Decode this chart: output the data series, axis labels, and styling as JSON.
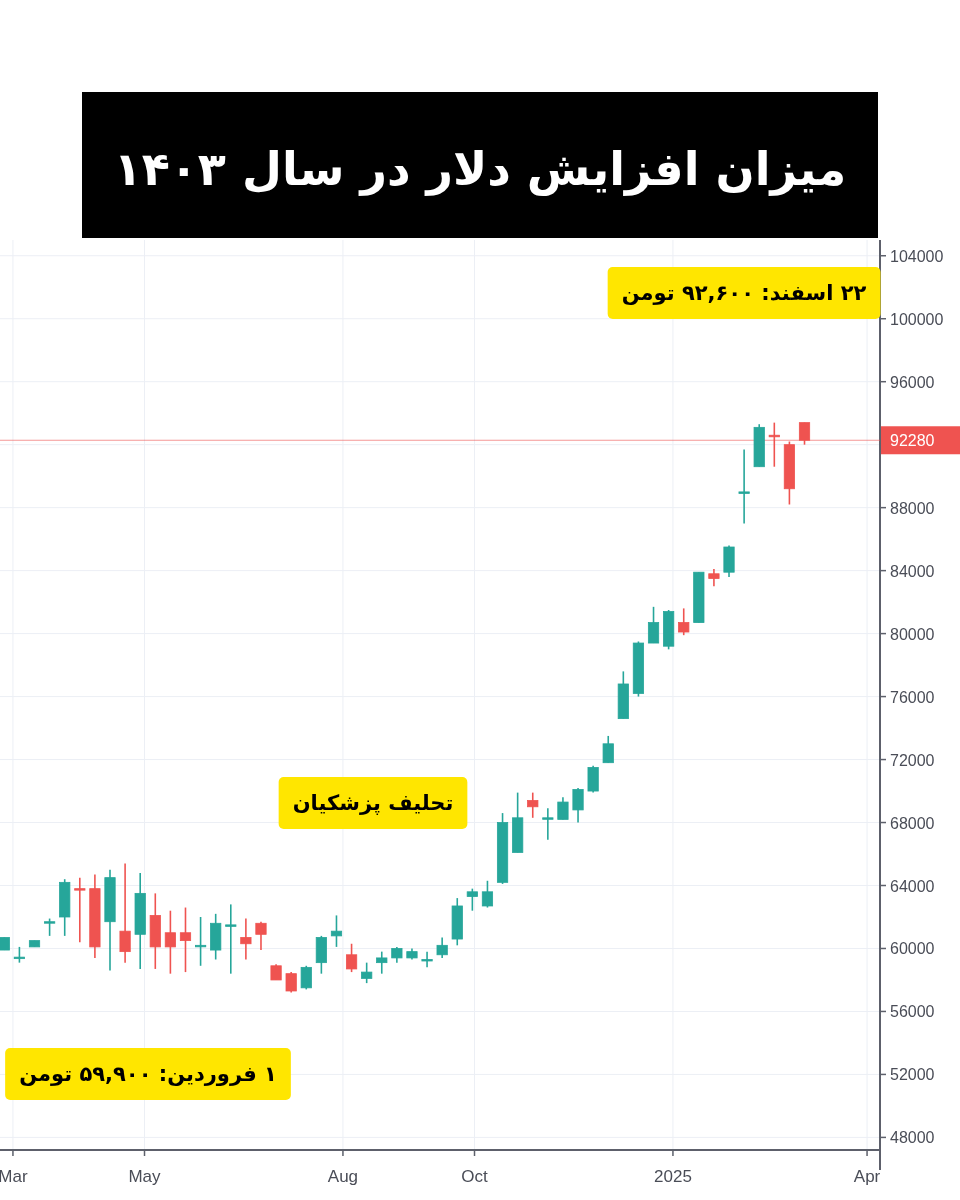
{
  "chart_data": {
    "type": "candlestick",
    "title": "میزان افزایش دلار در سال ۱۴۰۳",
    "x": [
      "2024-02-26",
      "2024-03-04",
      "2024-03-11",
      "2024-03-18",
      "2024-03-25",
      "2024-04-01",
      "2024-04-08",
      "2024-04-15",
      "2024-04-22",
      "2024-04-29",
      "2024-05-06",
      "2024-05-13",
      "2024-05-20",
      "2024-05-27",
      "2024-06-03",
      "2024-06-10",
      "2024-06-17",
      "2024-06-24",
      "2024-07-01",
      "2024-07-08",
      "2024-07-15",
      "2024-07-22",
      "2024-07-29",
      "2024-08-05",
      "2024-08-12",
      "2024-08-19",
      "2024-08-26",
      "2024-09-02",
      "2024-09-09",
      "2024-09-16",
      "2024-09-23",
      "2024-09-30",
      "2024-10-07",
      "2024-10-14",
      "2024-10-21",
      "2024-10-28",
      "2024-11-04",
      "2024-11-11",
      "2024-11-18",
      "2024-11-25",
      "2024-12-02",
      "2024-12-09",
      "2024-12-16",
      "2024-12-23",
      "2024-12-30",
      "2025-01-06",
      "2025-01-13",
      "2025-01-20",
      "2025-01-27",
      "2025-02-03",
      "2025-02-10",
      "2025-02-17",
      "2025-02-24",
      "2025-03-03"
    ],
    "ohlc": [
      [
        59900,
        60700,
        59900,
        60700
      ],
      [
        59400,
        60100,
        59100,
        59450
      ],
      [
        60100,
        60500,
        60100,
        60500
      ],
      [
        61650,
        61900,
        60800,
        61700
      ],
      [
        62000,
        64400,
        60800,
        64200
      ],
      [
        63800,
        64500,
        60400,
        63750
      ],
      [
        63800,
        64700,
        59400,
        60100
      ],
      [
        61700,
        65000,
        58600,
        64500
      ],
      [
        61100,
        65400,
        59100,
        59800
      ],
      [
        60900,
        64800,
        58700,
        63500
      ],
      [
        62100,
        63500,
        58700,
        60100
      ],
      [
        61000,
        62400,
        58400,
        60100
      ],
      [
        61000,
        62600,
        58500,
        60500
      ],
      [
        60150,
        62000,
        58900,
        60200
      ],
      [
        59900,
        62200,
        59300,
        61600
      ],
      [
        61450,
        62800,
        58400,
        61500
      ],
      [
        60700,
        61900,
        59300,
        60300
      ],
      [
        61600,
        61700,
        59900,
        60900
      ],
      [
        58900,
        59000,
        58000,
        58000
      ],
      [
        58400,
        58500,
        57200,
        57300
      ],
      [
        57500,
        58900,
        57400,
        58800
      ],
      [
        59100,
        60800,
        58400,
        60700
      ],
      [
        60800,
        62100,
        60100,
        61100
      ],
      [
        59600,
        60300,
        58500,
        58700
      ],
      [
        58100,
        59100,
        57800,
        58500
      ],
      [
        59100,
        59800,
        58400,
        59400
      ],
      [
        59400,
        60100,
        59100,
        60000
      ],
      [
        59400,
        60000,
        59300,
        59800
      ],
      [
        59250,
        59800,
        58800,
        59300
      ],
      [
        59600,
        60700,
        59400,
        60200
      ],
      [
        60600,
        63200,
        60200,
        62700
      ],
      [
        63300,
        63800,
        62400,
        63600
      ],
      [
        62700,
        64300,
        62600,
        63600
      ],
      [
        64200,
        68600,
        64100,
        68000
      ],
      [
        66100,
        69900,
        66100,
        68300
      ],
      [
        69400,
        69900,
        68300,
        69000
      ],
      [
        68250,
        68900,
        66900,
        68300
      ],
      [
        68200,
        69600,
        68200,
        69300
      ],
      [
        68800,
        70200,
        68000,
        70100
      ],
      [
        70000,
        71600,
        69900,
        71500
      ],
      [
        71800,
        73500,
        71800,
        73000
      ],
      [
        74600,
        77600,
        74600,
        76800
      ],
      [
        76200,
        79500,
        76000,
        79400
      ],
      [
        79400,
        81700,
        79400,
        80700
      ],
      [
        79200,
        81500,
        79000,
        81400
      ],
      [
        80700,
        81600,
        79900,
        80100
      ],
      [
        80700,
        83900,
        80700,
        83900
      ],
      [
        83800,
        84100,
        83000,
        83500
      ],
      [
        83900,
        85600,
        83600,
        85500
      ],
      [
        88950,
        91700,
        87000,
        89000
      ],
      [
        90600,
        93300,
        90600,
        93100
      ],
      [
        92600,
        93400,
        90600,
        92500
      ],
      [
        92000,
        92200,
        88200,
        89200
      ],
      [
        93400,
        93400,
        92000,
        92280
      ]
    ],
    "colors": [
      "#26a69a",
      "#26a69a",
      "#26a69a",
      "#26a69a",
      "#26a69a",
      "#ef5350",
      "#ef5350",
      "#26a69a",
      "#ef5350",
      "#26a69a",
      "#ef5350",
      "#ef5350",
      "#ef5350",
      "#26a69a",
      "#26a69a",
      "#26a69a",
      "#ef5350",
      "#ef5350",
      "#ef5350",
      "#ef5350",
      "#26a69a",
      "#26a69a",
      "#26a69a",
      "#ef5350",
      "#26a69a",
      "#26a69a",
      "#26a69a",
      "#26a69a",
      "#26a69a",
      "#26a69a",
      "#26a69a",
      "#26a69a",
      "#26a69a",
      "#26a69a",
      "#26a69a",
      "#ef5350",
      "#26a69a",
      "#26a69a",
      "#26a69a",
      "#26a69a",
      "#26a69a",
      "#26a69a",
      "#26a69a",
      "#26a69a",
      "#26a69a",
      "#ef5350",
      "#26a69a",
      "#ef5350",
      "#26a69a",
      "#26a69a",
      "#26a69a",
      "#ef5350",
      "#ef5350",
      "#ef5350"
    ],
    "xlim": [
      "2024-02-24",
      "2025-04-07"
    ],
    "xticks": [
      {
        "value": "2024-03-01",
        "label": "Mar"
      },
      {
        "value": "2024-05-01",
        "label": "May"
      },
      {
        "value": "2024-08-01",
        "label": "Aug"
      },
      {
        "value": "2024-10-01",
        "label": "Oct"
      },
      {
        "value": "2025-01-01",
        "label": "2025"
      },
      {
        "value": "2025-04-01",
        "label": "Apr"
      }
    ],
    "ylim": [
      47200,
      105000
    ],
    "yticks": [
      48000,
      52000,
      56000,
      60000,
      64000,
      68000,
      72000,
      76000,
      80000,
      84000,
      88000,
      {
        "value": 92000,
        "label": null
      },
      96000,
      100000,
      104000
    ],
    "grid": true,
    "ref_lines": [
      {
        "axis": "y",
        "value": 92280,
        "label": "92280",
        "color": "#ef5350"
      }
    ],
    "annotations": [
      "۱ فروردین: ۵۹,۹۰۰ تومن",
      "تحلیف پزشکیان",
      "۲۲ اسفند: ۹۲,۶۰۰ تومن"
    ]
  }
}
